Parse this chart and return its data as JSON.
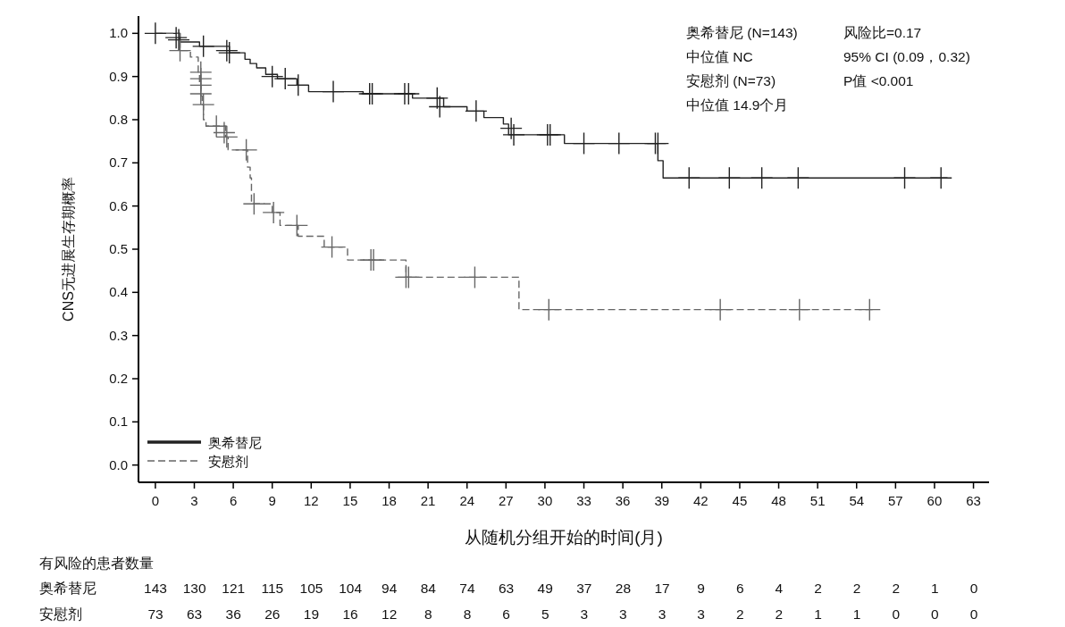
{
  "chart_data": [
    {
      "type": "step",
      "xlabel": "从随机分组开始的时间(月)",
      "ylabel": "CNS无进展生存期概率",
      "xlim": [
        -1.3,
        64.2
      ],
      "ylim": [
        -0.04,
        1.04
      ],
      "xticks": [
        0,
        3,
        6,
        9,
        12,
        15,
        18,
        21,
        24,
        27,
        30,
        33,
        36,
        39,
        42,
        45,
        48,
        51,
        54,
        57,
        60,
        63
      ],
      "yticks": [
        {
          "value": 0,
          "label": "0.0"
        },
        0.1,
        0.2,
        0.3,
        0.4,
        0.5,
        0.6,
        0.7,
        0.8,
        0.9,
        {
          "value": 1,
          "label": "1.0"
        }
      ],
      "legend": "bottom left",
      "annotations": [
        "奥希替尼 (N=143)",
        "中位值  NC",
        "安慰剂 (N=73)",
        "中位值  14.9个月",
        "风险比=0.17",
        "95% CI (0.09，0.32)",
        "P值 <0.001"
      ],
      "series": [
        {
          "name": "奥希替尼",
          "type": "step",
          "color": "#222222",
          "line_style": "solid",
          "marker": "none",
          "x": [
            0,
            1.9,
            3.4,
            5.7,
            6.9,
            7.3,
            7.8,
            8.5,
            9.4,
            10.9,
            11.8,
            16,
            19.8,
            22.2,
            24,
            25.3,
            26.8,
            27.2,
            31.5,
            38.7,
            39.1,
            61
          ],
          "values": [
            1.0,
            0.98,
            0.97,
            0.955,
            0.94,
            0.93,
            0.92,
            0.905,
            0.895,
            0.88,
            0.865,
            0.86,
            0.85,
            0.83,
            0.82,
            0.805,
            0.79,
            0.765,
            0.745,
            0.705,
            0.665,
            0.665
          ]
        },
        {
          "name": "安慰剂",
          "type": "step",
          "color": "#666666",
          "line_style": "dashed",
          "marker": "none",
          "x": [
            0,
            1.9,
            2.7,
            3.3,
            3.4,
            3.5,
            3.6,
            3.7,
            3.9,
            5.4,
            5.6,
            7.1,
            7.3,
            7.4,
            9,
            9.6,
            11,
            13,
            14.8,
            19.3,
            28,
            55.4
          ],
          "values": [
            1.0,
            0.96,
            0.945,
            0.91,
            0.88,
            0.855,
            0.835,
            0.8,
            0.785,
            0.76,
            0.73,
            0.69,
            0.665,
            0.605,
            0.585,
            0.555,
            0.53,
            0.505,
            0.475,
            0.435,
            0.36,
            0.36
          ]
        },
        {
          "type": "scatter",
          "color": "#222222",
          "marker": "cross",
          "x": [
            0,
            1.6,
            1.8,
            3.7,
            5.5,
            5.7,
            9,
            10,
            11,
            13.7,
            16.5,
            16.7,
            19.2,
            19.5,
            21.7,
            21.9,
            24.7,
            27.4,
            27.6,
            30.2,
            30.4,
            33,
            35.7,
            38.5,
            38.7,
            41.1,
            44.2,
            46.7,
            49.5,
            57.7,
            60.5
          ],
          "values": [
            1,
            0.99,
            0.985,
            0.97,
            0.96,
            0.955,
            0.9,
            0.895,
            0.88,
            0.865,
            0.86,
            0.86,
            0.86,
            0.86,
            0.85,
            0.83,
            0.82,
            0.78,
            0.765,
            0.765,
            0.765,
            0.745,
            0.745,
            0.745,
            0.745,
            0.665,
            0.665,
            0.665,
            0.665,
            0.665,
            0.665
          ]
        },
        {
          "type": "scatter",
          "color": "#666666",
          "marker": "cross",
          "x": [
            1.9,
            3.5,
            3.5,
            3.5,
            3.5,
            3.7,
            4.7,
            5.3,
            5.5,
            7.0,
            7.6,
            9.1,
            10.9,
            13.6,
            16.6,
            16.8,
            19.3,
            19.5,
            24.6,
            30.3,
            43.5,
            49.6,
            55
          ],
          "values": [
            0.96,
            0.91,
            0.895,
            0.88,
            0.86,
            0.835,
            0.785,
            0.77,
            0.76,
            0.73,
            0.605,
            0.585,
            0.555,
            0.505,
            0.475,
            0.475,
            0.435,
            0.435,
            0.435,
            0.36,
            0.36,
            0.36,
            0.36
          ]
        }
      ]
    },
    {
      "type": "heatmap",
      "title": "有风险的患者数量",
      "data_labels": true,
      "categories": [
        null,
        null,
        null,
        null,
        null,
        null,
        null,
        null,
        null,
        null,
        null,
        null,
        null,
        null,
        null,
        null,
        null,
        null,
        null,
        null,
        null,
        null
      ],
      "y_categories": [
        "奥希替尼",
        "安慰剂"
      ],
      "cells": [
        [
          143,
          130,
          121,
          115,
          105,
          104,
          94,
          84,
          74,
          63,
          49,
          37,
          28,
          17,
          9,
          6,
          4,
          2,
          2,
          2,
          1,
          0
        ],
        [
          73,
          63,
          36,
          26,
          19,
          16,
          12,
          8,
          8,
          6,
          5,
          3,
          3,
          3,
          3,
          2,
          2,
          1,
          1,
          0,
          0,
          0
        ]
      ]
    }
  ]
}
